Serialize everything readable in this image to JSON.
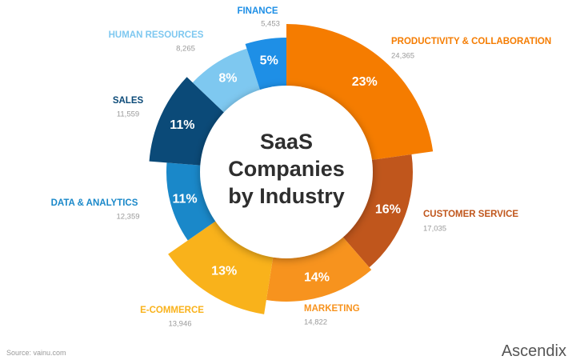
{
  "chart_data": {
    "type": "donut",
    "title": "SaaS Companies by Industry",
    "categories": [
      "PRODUCTIVITY & COLLABORATION",
      "CUSTOMER SERVICE",
      "MARKETING",
      "E-COMMERCE",
      "DATA & ANALYTICS",
      "SALES",
      "HUMAN RESOURCES",
      "FINANCE"
    ],
    "values": [
      23,
      16,
      14,
      13,
      11,
      11,
      8,
      5
    ],
    "value_labels": [
      "23%",
      "16%",
      "14%",
      "13%",
      "11%",
      "11%",
      "8%",
      "5%"
    ],
    "counts": [
      {
        "value": 24365,
        "label": "24,365"
      },
      {
        "value": 17035,
        "label": "17,035"
      },
      {
        "value": 14822,
        "label": "14,822"
      },
      {
        "value": 13946,
        "label": "13,946"
      },
      {
        "value": 12359,
        "label": "12,359"
      },
      {
        "value": 11559,
        "label": "11,559"
      },
      {
        "value": 8265,
        "label": "8,265"
      },
      {
        "value": 5453,
        "label": "5,453"
      }
    ],
    "colors": [
      "#f57c00",
      "#c0561c",
      "#f7931e",
      "#f9b21b",
      "#1a88c9",
      "#0b4a78",
      "#7ec8f0",
      "#1e8fe6"
    ],
    "source": "Source: vainu.com",
    "brand": "Ascendix"
  }
}
